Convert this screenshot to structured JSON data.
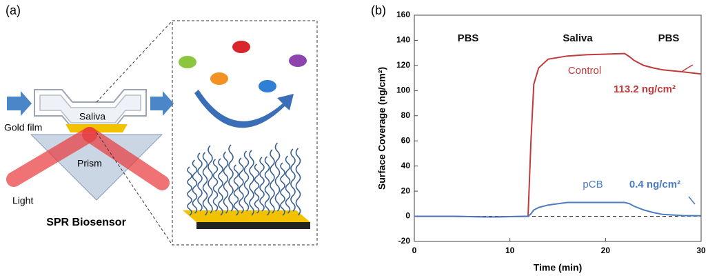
{
  "diagram": {
    "panel_label": "(a)",
    "flow_label": "Saliva",
    "gold_label": "Gold film",
    "prism_label": "Prism",
    "light_label": "Light",
    "caption": "SPR Biosensor"
  },
  "chart_data": {
    "type": "line",
    "panel_label": "(b)",
    "x_label": "Time (min)",
    "y_label": "Surface Coverage (ng/cm²)",
    "xlim": [
      0,
      30
    ],
    "xticks": [
      0,
      10,
      20,
      30
    ],
    "ylim": [
      -20,
      160
    ],
    "yticks": [
      -20,
      0,
      20,
      40,
      60,
      80,
      100,
      120,
      140,
      160
    ],
    "reference_line": 0,
    "x": [
      0,
      4,
      8,
      11.9,
      12.2,
      12.5,
      13,
      14,
      16,
      18,
      20,
      22,
      22.5,
      23,
      24,
      25,
      26,
      28,
      30
    ],
    "series": [
      {
        "name": "Control",
        "color": "#c0393b",
        "values": [
          0,
          0,
          -0.5,
          0,
          60,
          105,
          118,
          125,
          127.5,
          128.5,
          129,
          129.5,
          127,
          124,
          120,
          118,
          116.5,
          115,
          113.2
        ]
      },
      {
        "name": "pCB",
        "color": "#4a7cc1",
        "values": [
          0,
          0,
          -0.5,
          0,
          2,
          5,
          7,
          9,
          11,
          11,
          11,
          11,
          10,
          8,
          5,
          3,
          1.5,
          0.6,
          0.4
        ]
      }
    ],
    "annotations": [
      "PBS",
      "Saliva",
      "PBS",
      "113.2 ng/cm²",
      "0.4 ng/cm²"
    ]
  }
}
